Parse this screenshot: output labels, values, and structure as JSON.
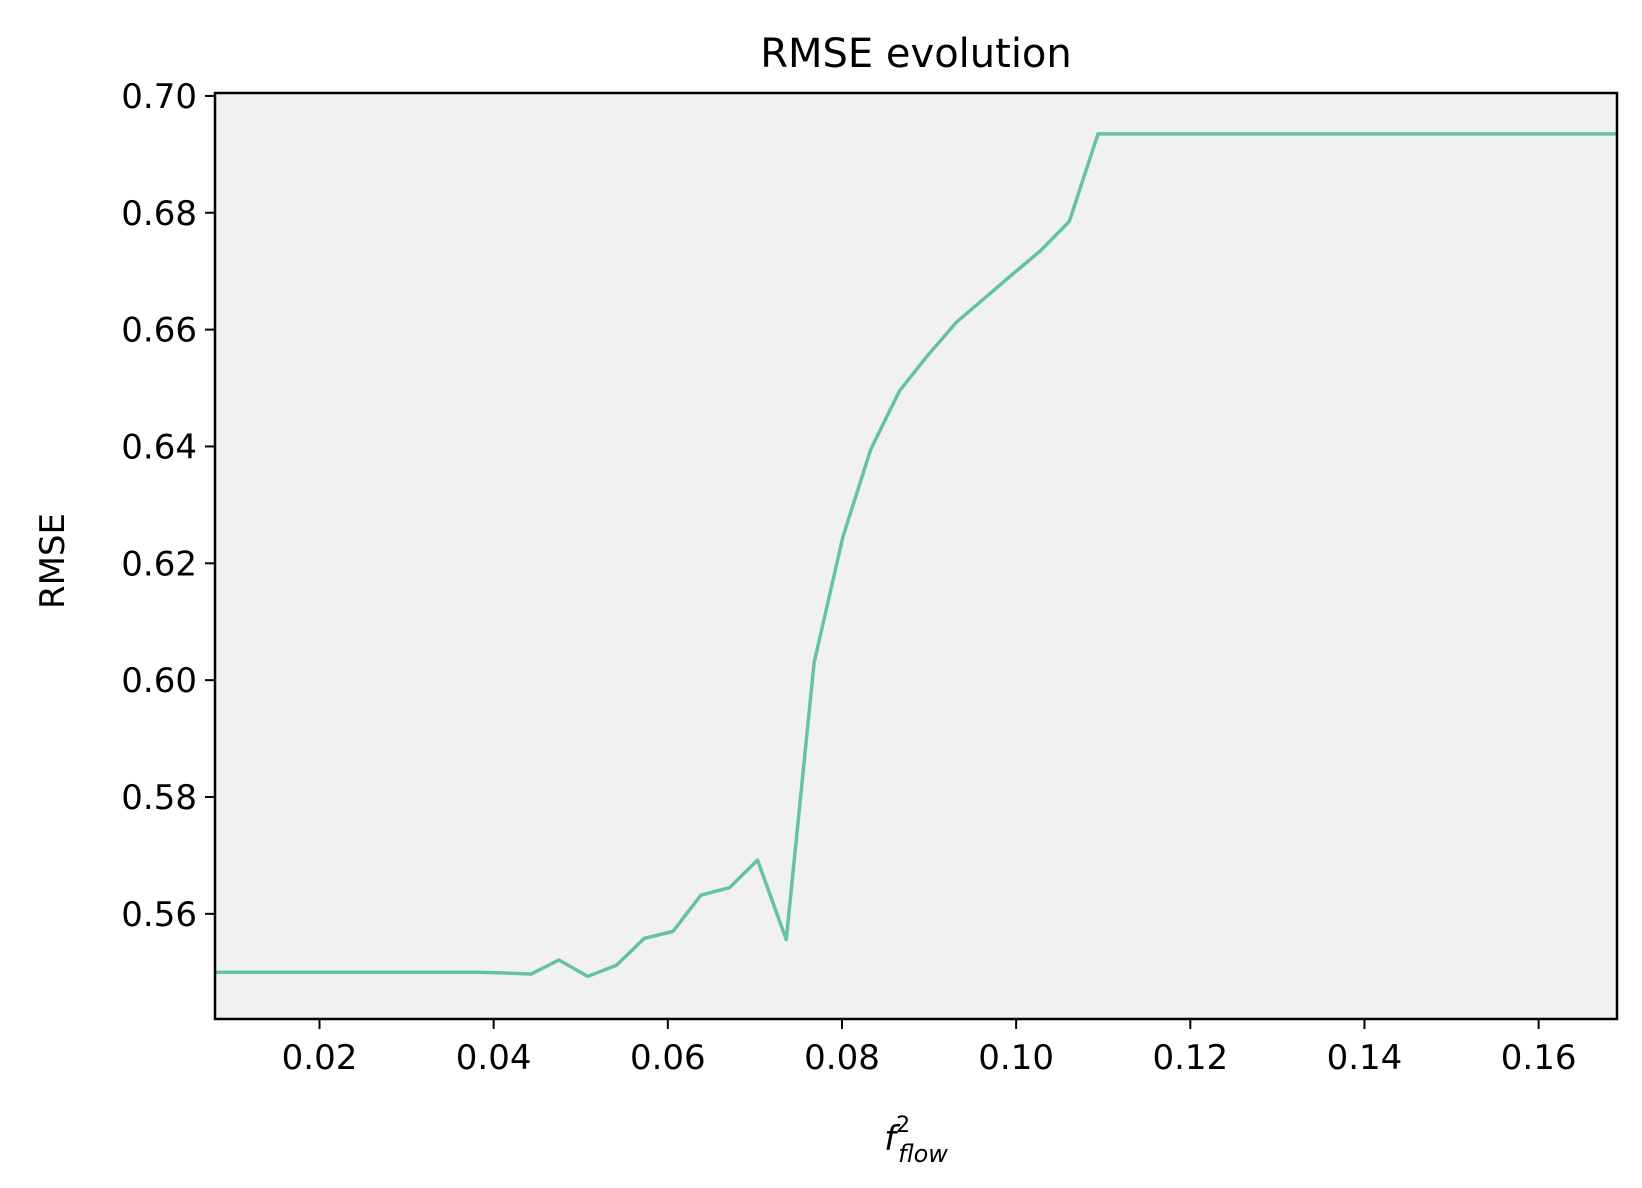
{
  "chart_data": {
    "type": "line",
    "title": "RMSE evolution",
    "xlabel": {
      "base": "f",
      "sup": "2",
      "sub": "flow"
    },
    "ylabel": "RMSE",
    "xlim": [
      0.008,
      0.169
    ],
    "ylim": [
      0.542,
      0.7005
    ],
    "xticks": [
      "0.02",
      "0.04",
      "0.06",
      "0.08",
      "0.10",
      "0.12",
      "0.14",
      "0.16"
    ],
    "yticks": [
      "0.56",
      "0.58",
      "0.60",
      "0.62",
      "0.64",
      "0.66",
      "0.68",
      "0.70"
    ],
    "grid": false,
    "plot_background": "#f1f1f1",
    "series": [
      {
        "color": "#66c2a5",
        "x": [
          0.008,
          0.01,
          0.02,
          0.03,
          0.038,
          0.041,
          0.0443,
          0.0475,
          0.0508,
          0.0541,
          0.0573,
          0.0606,
          0.0638,
          0.0671,
          0.0703,
          0.0736,
          0.0768,
          0.0801,
          0.0833,
          0.0866,
          0.0898,
          0.0931,
          0.0963,
          0.0996,
          0.1028,
          0.1061,
          0.1094,
          0.12,
          0.14,
          0.16,
          0.169
        ],
        "y": [
          0.55,
          0.55,
          0.55,
          0.55,
          0.55,
          0.5499,
          0.5497,
          0.5521,
          0.5493,
          0.5512,
          0.5558,
          0.557,
          0.5632,
          0.5645,
          0.5692,
          0.5556,
          0.603,
          0.6245,
          0.6395,
          0.6495,
          0.6555,
          0.6612,
          0.6653,
          0.6695,
          0.6735,
          0.6785,
          0.6935,
          0.6935,
          0.6935,
          0.6935,
          0.6935
        ]
      }
    ]
  }
}
